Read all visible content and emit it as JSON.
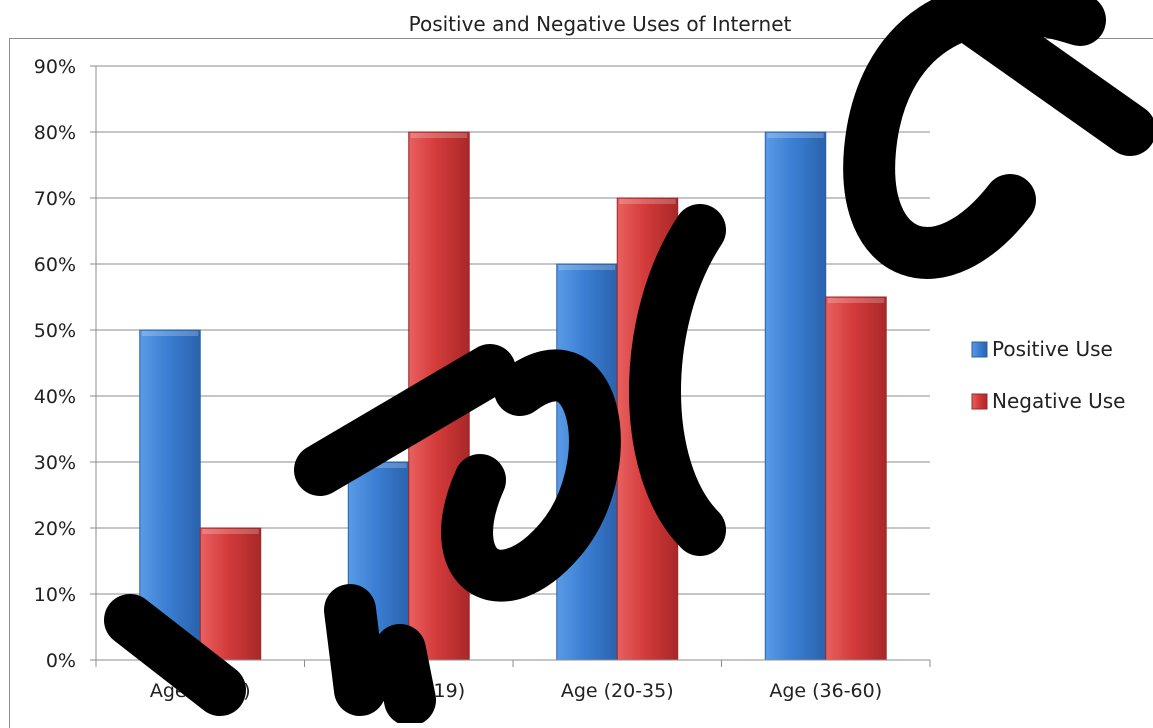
{
  "chart_data": {
    "type": "bar",
    "title": "Positive and Negative Uses of Internet",
    "categories": [
      "Age (3-12)",
      "Age (13-19)",
      "Age (20-35)",
      "Age (36-60)"
    ],
    "series": [
      {
        "name": "Positive Use",
        "values": [
          50,
          30,
          60,
          80
        ],
        "color": "#3b7fd4"
      },
      {
        "name": "Negative Use",
        "values": [
          20,
          80,
          70,
          55
        ],
        "color": "#d43b3b"
      }
    ],
    "ylim": [
      0,
      90
    ],
    "yticks": [
      "0%",
      "10%",
      "20%",
      "30%",
      "40%",
      "50%",
      "60%",
      "70%",
      "80%",
      "90%"
    ],
    "grid": true,
    "legend": "right"
  }
}
